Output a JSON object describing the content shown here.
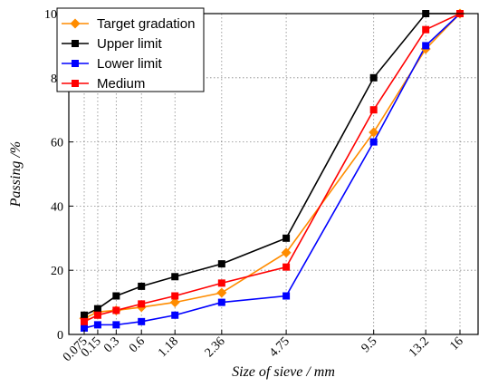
{
  "chart_data": {
    "type": "line",
    "title": "",
    "xlabel": "Size of sieve / mm",
    "ylabel": "Passing /%",
    "x_scale": "power-0.45",
    "x": [
      0.075,
      0.15,
      0.3,
      0.6,
      1.18,
      2.36,
      4.75,
      9.5,
      13.2,
      16
    ],
    "x_tick_labels": [
      "0.075",
      "0.15",
      "0.3",
      "0.6",
      "1.18",
      "2.36",
      "4.75",
      "9.5",
      "13.2",
      "16"
    ],
    "ylim": [
      0,
      100
    ],
    "y_ticks": [
      0,
      20,
      40,
      60,
      80,
      100
    ],
    "grid": true,
    "legend_position": "top-left",
    "series": [
      {
        "name": "Target gradation",
        "color": "#ff8c00",
        "marker": "diamond",
        "values": [
          5,
          7,
          7.5,
          8.5,
          10,
          13,
          25.5,
          63,
          89,
          100
        ]
      },
      {
        "name": "Upper limit",
        "color": "#000000",
        "marker": "square",
        "values": [
          6,
          8,
          12,
          15,
          18,
          22,
          30,
          80,
          100,
          100
        ]
      },
      {
        "name": "Lower limit",
        "color": "#0000ff",
        "marker": "square",
        "values": [
          2,
          3,
          3,
          4,
          6,
          10,
          12,
          60,
          90,
          100
        ]
      },
      {
        "name": "Medium",
        "color": "#ff0000",
        "marker": "square",
        "values": [
          4,
          6,
          7.5,
          9.5,
          12,
          16,
          21,
          70,
          95,
          100
        ]
      }
    ]
  }
}
